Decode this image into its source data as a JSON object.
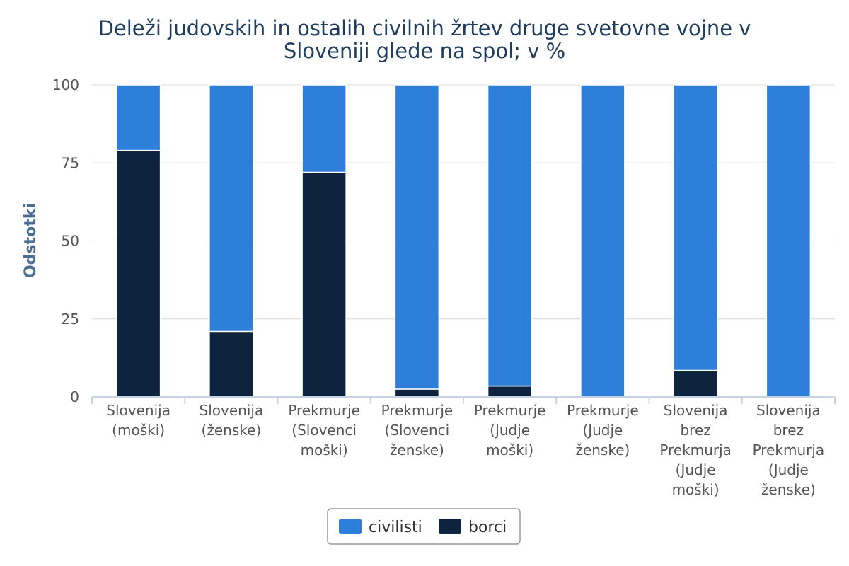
{
  "chart_data": {
    "type": "bar",
    "stacked": true,
    "title_lines": [
      "Deleži judovskih in ostalih civilnih žrtev druge svetovne vojne v",
      "Sloveniji glede na spol; v %"
    ],
    "xlabel": "",
    "ylabel": "Odstotki",
    "ylim": [
      0,
      100
    ],
    "yticks": [
      0,
      25,
      50,
      75,
      100
    ],
    "grid": true,
    "legend_position": "bottom",
    "categories": [
      [
        "Slovenija",
        "(moški)"
      ],
      [
        "Slovenija",
        "(ženske)"
      ],
      [
        "Prekmurje",
        "(Slovenci",
        "moški)"
      ],
      [
        "Prekmurje",
        "(Slovenci",
        "ženske)"
      ],
      [
        "Prekmurje",
        "(Judje",
        "moški)"
      ],
      [
        "Prekmurje",
        "(Judje",
        "ženske)"
      ],
      [
        "Slovenija",
        "brez",
        "Prekmurja",
        "(Judje",
        "moški)"
      ],
      [
        "Slovenija",
        "brez",
        "Prekmurja",
        "(Judje",
        "ženske)"
      ]
    ],
    "series": [
      {
        "name": "borci",
        "color": "#0e233d",
        "values": [
          79,
          21,
          72,
          2.5,
          3.5,
          0,
          8.5,
          0
        ]
      },
      {
        "name": "civilisti",
        "color": "#2e7fd9",
        "values": [
          21,
          79,
          28,
          97.5,
          96.5,
          100,
          91.5,
          100
        ]
      }
    ],
    "legend_order": [
      "civilisti",
      "borci"
    ]
  }
}
